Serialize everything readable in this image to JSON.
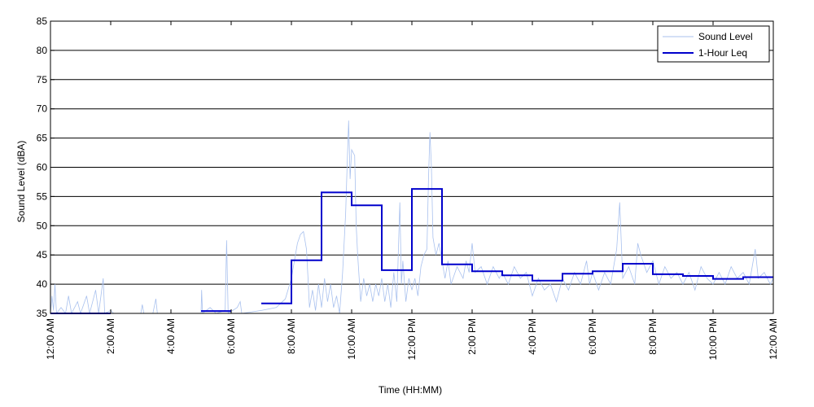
{
  "chart_data": {
    "type": "line",
    "xlabel": "Time (HH:MM)",
    "ylabel": "Sound Level (dBA)",
    "ylim": [
      35,
      85
    ],
    "yticks": [
      35,
      40,
      45,
      50,
      55,
      60,
      65,
      70,
      75,
      80,
      85
    ],
    "xlim_hours": [
      0,
      24
    ],
    "xticks": [
      {
        "hour": 0,
        "label": "12:00 AM"
      },
      {
        "hour": 2,
        "label": "2:00 AM"
      },
      {
        "hour": 4,
        "label": "4:00 AM"
      },
      {
        "hour": 6,
        "label": "6:00 AM"
      },
      {
        "hour": 8,
        "label": "8:00 AM"
      },
      {
        "hour": 10,
        "label": "10:00 AM"
      },
      {
        "hour": 12,
        "label": "12:00 PM"
      },
      {
        "hour": 14,
        "label": "2:00 PM"
      },
      {
        "hour": 16,
        "label": "4:00 PM"
      },
      {
        "hour": 18,
        "label": "6:00 PM"
      },
      {
        "hour": 20,
        "label": "8:00 PM"
      },
      {
        "hour": 22,
        "label": "10:00 PM"
      },
      {
        "hour": 24,
        "label": "12:00 AM"
      }
    ],
    "grid": "horizontal",
    "legend_position": "top-right",
    "series": [
      {
        "name": "Sound Level",
        "color": "#a9c1ee",
        "style": "thin-line",
        "points": [
          [
            0.0,
            35
          ],
          [
            0.05,
            38
          ],
          [
            0.1,
            35.5
          ],
          [
            0.15,
            40
          ],
          [
            0.2,
            35
          ],
          [
            0.35,
            36
          ],
          [
            0.5,
            35
          ],
          [
            0.6,
            38
          ],
          [
            0.7,
            35
          ],
          [
            0.9,
            37
          ],
          [
            1.0,
            35
          ],
          [
            1.2,
            38
          ],
          [
            1.3,
            35
          ],
          [
            1.5,
            39
          ],
          [
            1.6,
            35
          ],
          [
            1.75,
            41
          ],
          [
            1.8,
            35
          ],
          [
            2.0,
            35.5
          ],
          [
            2.1,
            35
          ],
          [
            3.0,
            35
          ],
          [
            3.05,
            36.5
          ],
          [
            3.1,
            35
          ],
          [
            3.4,
            35
          ],
          [
            3.5,
            37.5
          ],
          [
            3.55,
            35
          ],
          [
            5.0,
            35
          ],
          [
            5.02,
            39
          ],
          [
            5.05,
            35
          ],
          [
            5.3,
            36
          ],
          [
            5.5,
            35
          ],
          [
            5.8,
            35.5
          ],
          [
            5.85,
            47.5
          ],
          [
            5.9,
            35
          ],
          [
            6.2,
            36
          ],
          [
            6.3,
            37
          ],
          [
            6.35,
            35
          ],
          [
            7.0,
            35.5
          ],
          [
            7.5,
            36
          ],
          [
            7.8,
            37.5
          ],
          [
            8.0,
            41
          ],
          [
            8.1,
            44
          ],
          [
            8.2,
            47
          ],
          [
            8.3,
            48.5
          ],
          [
            8.4,
            49
          ],
          [
            8.5,
            46
          ],
          [
            8.55,
            41
          ],
          [
            8.6,
            36
          ],
          [
            8.7,
            39
          ],
          [
            8.8,
            35.5
          ],
          [
            8.9,
            40
          ],
          [
            9.0,
            36
          ],
          [
            9.1,
            41
          ],
          [
            9.2,
            37
          ],
          [
            9.3,
            40
          ],
          [
            9.4,
            36
          ],
          [
            9.5,
            38
          ],
          [
            9.6,
            35
          ],
          [
            9.7,
            42
          ],
          [
            9.8,
            52
          ],
          [
            9.85,
            60
          ],
          [
            9.9,
            68
          ],
          [
            9.95,
            58
          ],
          [
            10.0,
            63
          ],
          [
            10.1,
            62
          ],
          [
            10.15,
            50
          ],
          [
            10.2,
            45
          ],
          [
            10.3,
            37
          ],
          [
            10.4,
            41
          ],
          [
            10.5,
            38
          ],
          [
            10.6,
            40
          ],
          [
            10.7,
            37
          ],
          [
            10.8,
            40
          ],
          [
            10.9,
            38
          ],
          [
            11.0,
            41
          ],
          [
            11.1,
            37
          ],
          [
            11.2,
            40
          ],
          [
            11.3,
            36
          ],
          [
            11.4,
            42
          ],
          [
            11.5,
            37
          ],
          [
            11.6,
            54
          ],
          [
            11.65,
            40
          ],
          [
            11.7,
            44
          ],
          [
            11.8,
            37
          ],
          [
            11.9,
            41
          ],
          [
            12.0,
            39
          ],
          [
            12.1,
            41
          ],
          [
            12.2,
            38
          ],
          [
            12.3,
            43
          ],
          [
            12.4,
            45
          ],
          [
            12.5,
            46
          ],
          [
            12.55,
            58
          ],
          [
            12.6,
            66
          ],
          [
            12.65,
            60
          ],
          [
            12.7,
            48
          ],
          [
            12.8,
            45
          ],
          [
            12.9,
            47
          ],
          [
            13.0,
            44
          ],
          [
            13.1,
            41
          ],
          [
            13.2,
            44
          ],
          [
            13.3,
            40
          ],
          [
            13.5,
            43
          ],
          [
            13.7,
            41
          ],
          [
            13.8,
            44
          ],
          [
            13.9,
            42
          ],
          [
            14.0,
            47
          ],
          [
            14.1,
            42
          ],
          [
            14.3,
            43
          ],
          [
            14.5,
            40
          ],
          [
            14.7,
            43
          ],
          [
            14.9,
            41
          ],
          [
            15.0,
            42
          ],
          [
            15.2,
            40
          ],
          [
            15.4,
            43
          ],
          [
            15.6,
            41
          ],
          [
            15.8,
            42
          ],
          [
            16.0,
            38
          ],
          [
            16.2,
            41
          ],
          [
            16.4,
            39
          ],
          [
            16.6,
            40
          ],
          [
            16.8,
            37
          ],
          [
            17.0,
            41
          ],
          [
            17.2,
            39
          ],
          [
            17.4,
            42
          ],
          [
            17.6,
            40
          ],
          [
            17.8,
            44
          ],
          [
            17.9,
            40
          ],
          [
            18.0,
            42
          ],
          [
            18.2,
            39
          ],
          [
            18.4,
            42
          ],
          [
            18.6,
            40
          ],
          [
            18.8,
            46
          ],
          [
            18.9,
            54
          ],
          [
            19.0,
            41
          ],
          [
            19.2,
            43
          ],
          [
            19.4,
            40
          ],
          [
            19.5,
            47
          ],
          [
            19.6,
            45
          ],
          [
            19.8,
            42
          ],
          [
            20.0,
            44
          ],
          [
            20.2,
            40
          ],
          [
            20.4,
            43
          ],
          [
            20.6,
            41
          ],
          [
            20.8,
            42
          ],
          [
            21.0,
            40
          ],
          [
            21.2,
            42
          ],
          [
            21.4,
            39
          ],
          [
            21.6,
            43
          ],
          [
            21.8,
            41
          ],
          [
            22.0,
            40
          ],
          [
            22.2,
            42
          ],
          [
            22.4,
            40
          ],
          [
            22.6,
            43
          ],
          [
            22.8,
            41
          ],
          [
            23.0,
            42
          ],
          [
            23.2,
            40
          ],
          [
            23.4,
            46
          ],
          [
            23.5,
            41
          ],
          [
            23.7,
            42
          ],
          [
            23.9,
            40
          ],
          [
            24.0,
            41
          ]
        ]
      },
      {
        "name": "1-Hour Leq",
        "color": "#0000cc",
        "style": "step",
        "steps": [
          {
            "start": 0,
            "end": 2,
            "value": 35
          },
          {
            "start": 5,
            "end": 6,
            "value": 35.4
          },
          {
            "start": 7,
            "end": 8,
            "value": 36.7
          },
          {
            "start": 8,
            "end": 9,
            "value": 44.1
          },
          {
            "start": 9,
            "end": 10,
            "value": 55.7
          },
          {
            "start": 10,
            "end": 11,
            "value": 53.5
          },
          {
            "start": 11,
            "end": 12,
            "value": 42.4
          },
          {
            "start": 12,
            "end": 13,
            "value": 56.3
          },
          {
            "start": 13,
            "end": 14,
            "value": 43.4
          },
          {
            "start": 14,
            "end": 15,
            "value": 42.2
          },
          {
            "start": 15,
            "end": 16,
            "value": 41.5
          },
          {
            "start": 16,
            "end": 17,
            "value": 40.6
          },
          {
            "start": 17,
            "end": 18,
            "value": 41.8
          },
          {
            "start": 18,
            "end": 19,
            "value": 42.2
          },
          {
            "start": 19,
            "end": 20,
            "value": 43.5
          },
          {
            "start": 20,
            "end": 21,
            "value": 41.7
          },
          {
            "start": 21,
            "end": 22,
            "value": 41.4
          },
          {
            "start": 22,
            "end": 23,
            "value": 40.9
          },
          {
            "start": 23,
            "end": 24,
            "value": 41.2
          }
        ]
      }
    ]
  }
}
